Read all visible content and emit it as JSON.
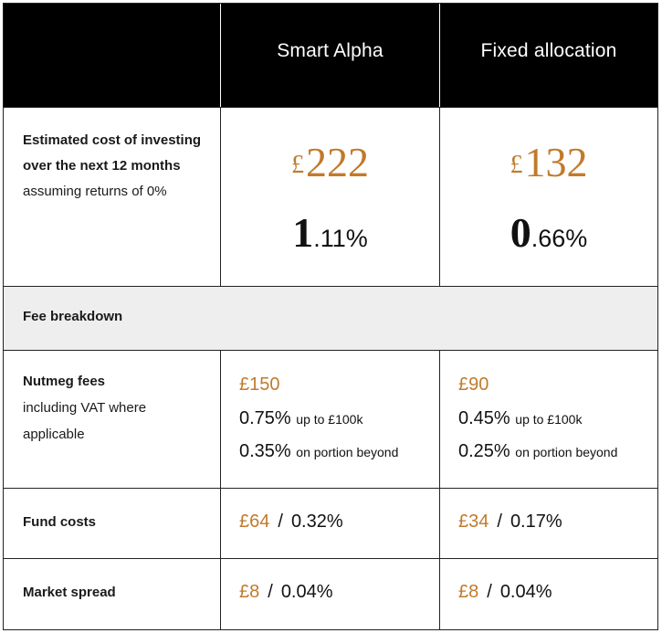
{
  "header": {
    "col1": "",
    "col2": "Smart Alpha",
    "col3": "Fixed allocation"
  },
  "estimate": {
    "label_bold": "Estimated cost of investing over the next 12 months",
    "label_sub": "assuming returns of 0%",
    "smart_alpha": {
      "currency": "£",
      "amount": "222",
      "pct_lead": "1",
      "pct_rest": ".11%"
    },
    "fixed": {
      "currency": "£",
      "amount": "132",
      "pct_lead": "0",
      "pct_rest": ".66%"
    }
  },
  "fee_breakdown": {
    "label": "Fee breakdown"
  },
  "nutmeg_fees": {
    "label_bold": "Nutmeg fees",
    "label_sub": "including VAT where applicable",
    "smart_alpha": {
      "amount": "£150",
      "tier1_pct": "0.75%",
      "tier1_note": "up to £100k",
      "tier2_pct": "0.35%",
      "tier2_note": "on portion beyond"
    },
    "fixed": {
      "amount": "£90",
      "tier1_pct": "0.45%",
      "tier1_note": "up to £100k",
      "tier2_pct": "0.25%",
      "tier2_note": "on portion beyond"
    }
  },
  "fund_costs": {
    "label": "Fund costs",
    "smart_alpha": {
      "amount": "£64",
      "sep": "/",
      "pct": "0.32%"
    },
    "fixed": {
      "amount": "£34",
      "sep": "/",
      "pct": "0.17%"
    }
  },
  "market_spread": {
    "label": "Market spread",
    "smart_alpha": {
      "amount": "£8",
      "sep": "/",
      "pct": "0.04%"
    },
    "fixed": {
      "amount": "£8",
      "sep": "/",
      "pct": "0.04%"
    }
  },
  "colors": {
    "accent": "#c17a2b",
    "header_bg": "#000000",
    "section_bg": "#eeeeee"
  }
}
